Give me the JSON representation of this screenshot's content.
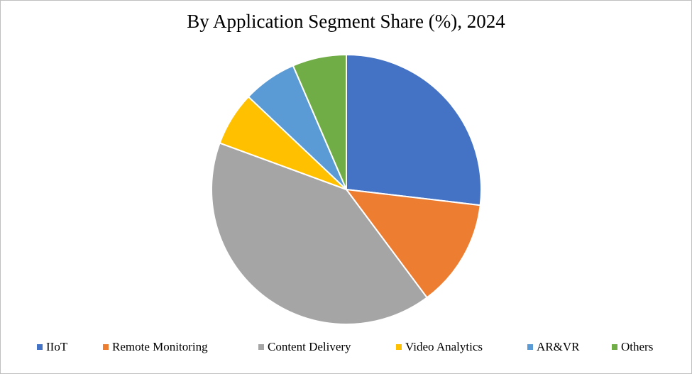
{
  "chart_data": {
    "type": "pie",
    "title": "By Application Segment Share (%), 2024",
    "legend_position": "bottom",
    "slices": [
      {
        "name": "IIoT",
        "value": 27,
        "color": "#4472C4"
      },
      {
        "name": "Remote Monitoring",
        "value": 13,
        "color": "#ED7D31"
      },
      {
        "name": "Content Delivery",
        "value": 41,
        "color": "#A5A5A5"
      },
      {
        "name": "Video Analytics",
        "value": 6.5,
        "color": "#FFC000"
      },
      {
        "name": "AR&VR",
        "value": 6.5,
        "color": "#5B9BD5"
      },
      {
        "name": "Others",
        "value": 6.5,
        "color": "#70AD47"
      }
    ]
  }
}
